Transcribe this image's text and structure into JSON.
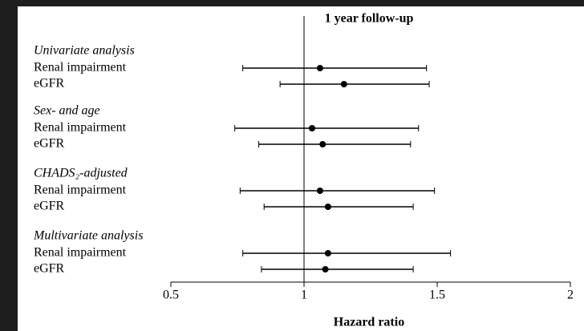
{
  "chart_data": {
    "type": "forest",
    "title": "1 year follow-up",
    "x_label": "Hazard ratio",
    "xlim": [
      0.5,
      2
    ],
    "xticks": [
      0.5,
      1,
      1.5,
      2
    ],
    "reference_line": 1,
    "color": "#000000",
    "groups": [
      {
        "name": "Univariate analysis",
        "rows": [
          {
            "label": "Renal impairment",
            "estimate": 1.06,
            "lower": 0.77,
            "upper": 1.46
          },
          {
            "label": "eGFR",
            "estimate": 1.15,
            "lower": 0.91,
            "upper": 1.47
          }
        ]
      },
      {
        "name": "Sex- and age",
        "rows": [
          {
            "label": "Renal impairment",
            "estimate": 1.03,
            "lower": 0.74,
            "upper": 1.43
          },
          {
            "label": "eGFR",
            "estimate": 1.07,
            "lower": 0.83,
            "upper": 1.4
          }
        ]
      },
      {
        "name": "CHADS₂-adjusted",
        "rows": [
          {
            "label": "Renal impairment",
            "estimate": 1.06,
            "lower": 0.76,
            "upper": 1.49
          },
          {
            "label": "eGFR",
            "estimate": 1.09,
            "lower": 0.85,
            "upper": 1.41
          }
        ]
      },
      {
        "name": "Multivariate analysis",
        "rows": [
          {
            "label": "Renal impairment",
            "estimate": 1.09,
            "lower": 0.77,
            "upper": 1.55
          },
          {
            "label": "eGFR",
            "estimate": 1.08,
            "lower": 0.84,
            "upper": 1.41
          }
        ]
      }
    ]
  }
}
